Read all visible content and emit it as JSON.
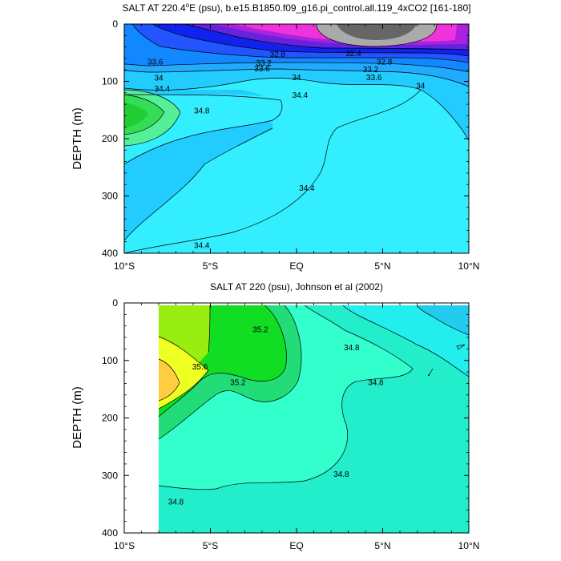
{
  "chart_data": [
    {
      "type": "contour",
      "title": "SALT AT 220.4°E (psu), b.e15.B1850.f09_g16.pi_control.all.119_4xCO2 [161-180]",
      "title_parts": {
        "prefix": "SALT AT 220.4",
        "deg": "o",
        "suffix": "E (psu), b.e15.B1850.f09_g16.pi_control.all.119_4xCO2 [161-180]"
      },
      "xlabel": "",
      "ylabel": "DEPTH (m)",
      "xlim": [
        -10,
        10
      ],
      "ylim": [
        400,
        0
      ],
      "x_ticks": [
        -10,
        -5,
        0,
        5,
        10
      ],
      "x_tick_labels": [
        "10°S",
        "5°S",
        "EQ",
        "5°N",
        "10°N"
      ],
      "y_ticks": [
        0,
        100,
        200,
        300,
        400
      ],
      "y_tick_labels": [
        "0",
        "100",
        "200",
        "300",
        "400"
      ],
      "contour_levels": [
        32.4,
        32.8,
        33.2,
        33.6,
        34,
        34.4,
        34.8
      ],
      "contour_labels": [
        {
          "text": "33.6",
          "x": -8.2,
          "y": 65
        },
        {
          "text": "32.8",
          "x": -1.1,
          "y": 52
        },
        {
          "text": "33.2",
          "x": -1.9,
          "y": 67
        },
        {
          "text": "33.6",
          "x": -2.0,
          "y": 77
        },
        {
          "text": "34",
          "x": -8.0,
          "y": 93
        },
        {
          "text": "34.4",
          "x": -7.8,
          "y": 112
        },
        {
          "text": "34.8",
          "x": -5.5,
          "y": 150
        },
        {
          "text": "34",
          "x": 0.0,
          "y": 92
        },
        {
          "text": "34.4",
          "x": 0.2,
          "y": 123
        },
        {
          "text": "32.4",
          "x": 3.3,
          "y": 50
        },
        {
          "text": "32.8",
          "x": 5.1,
          "y": 65
        },
        {
          "text": "33.2",
          "x": 4.3,
          "y": 78
        },
        {
          "text": "33.6",
          "x": 4.5,
          "y": 92
        },
        {
          "text": "34",
          "x": 7.2,
          "y": 107
        },
        {
          "text": "34.4",
          "x": 0.6,
          "y": 285
        },
        {
          "text": "34.4",
          "x": -5.5,
          "y": 385
        }
      ]
    },
    {
      "type": "contour",
      "title": "SALT AT 220 (psu), Johnson et al (2002)",
      "xlabel": "",
      "ylabel": "DEPTH (m)",
      "xlim": [
        -10,
        10
      ],
      "ylim": [
        400,
        0
      ],
      "x_ticks": [
        -10,
        -5,
        0,
        5,
        10
      ],
      "x_tick_labels": [
        "10°S",
        "5°S",
        "EQ",
        "5°N",
        "10°N"
      ],
      "y_ticks": [
        0,
        100,
        200,
        300,
        400
      ],
      "y_tick_labels": [
        "0",
        "100",
        "200",
        "300",
        "400"
      ],
      "contour_levels": [
        34.8,
        35.2,
        35.6
      ],
      "contour_labels": [
        {
          "text": "35.2",
          "x": -2.1,
          "y": 45
        },
        {
          "text": "35.6",
          "x": -5.6,
          "y": 110
        },
        {
          "text": "35.2",
          "x": -3.4,
          "y": 137
        },
        {
          "text": "34.8",
          "x": 3.2,
          "y": 77
        },
        {
          "text": "34.8",
          "x": 4.6,
          "y": 137
        },
        {
          "text": "34.8",
          "x": 2.6,
          "y": 297
        },
        {
          "text": "34.8",
          "x": -7.0,
          "y": 345
        }
      ]
    }
  ]
}
